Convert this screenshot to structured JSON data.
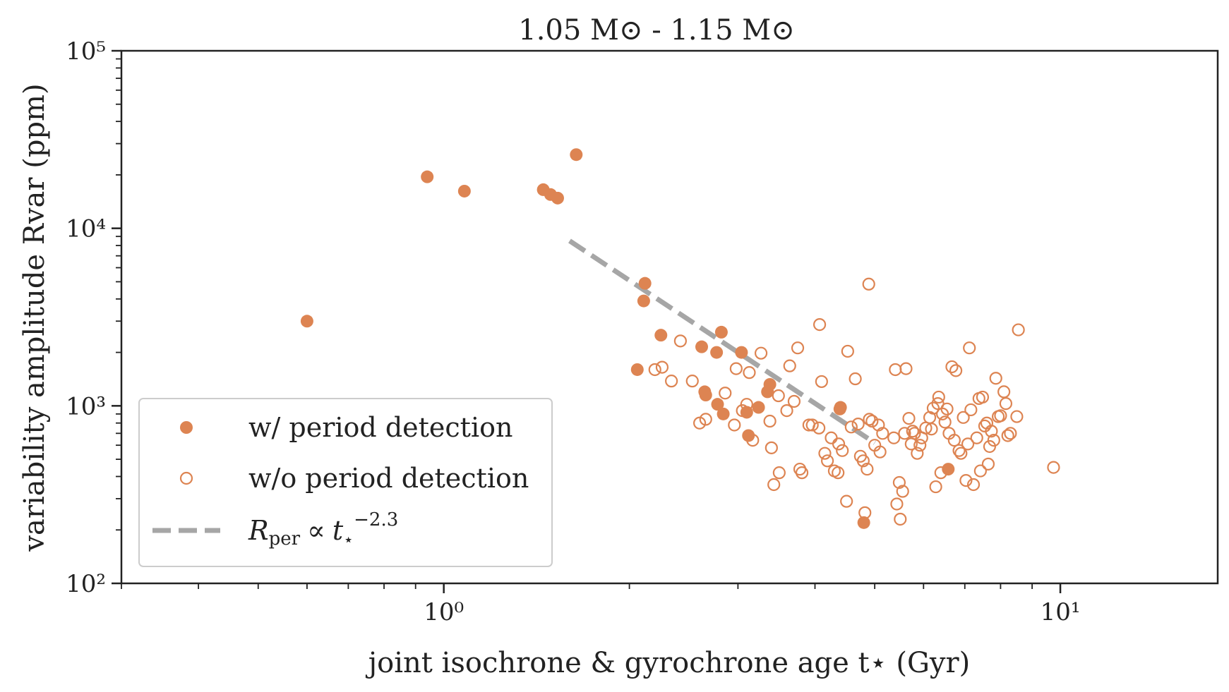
{
  "chart_data": {
    "type": "scatter",
    "title": "1.05 M⊙ - 1.15 M⊙",
    "xlabel": "joint isochrone & gyrochrone age t⋆ (Gyr)",
    "ylabel": "variability amplitude Rvar (ppm)",
    "xscale": "log",
    "yscale": "log",
    "xlim": [
      0.3,
      18
    ],
    "ylim": [
      100,
      100000
    ],
    "x_ticks": [
      {
        "value": 1,
        "label": "10⁰"
      },
      {
        "value": 10,
        "label": "10¹"
      }
    ],
    "y_ticks": [
      {
        "value": 100,
        "label": "10²"
      },
      {
        "value": 1000,
        "label": "10³"
      },
      {
        "value": 10000,
        "label": "10⁴"
      },
      {
        "value": 100000,
        "label": "10⁵"
      }
    ],
    "grid": false,
    "legend_position": "bottom-left",
    "colors": {
      "points": "#dd8452",
      "fit": "#a6a6a6",
      "axes": "#222222"
    },
    "series": [
      {
        "name": "w/ period detection",
        "marker": "filled-circle",
        "points": [
          [
            0.6,
            3000
          ],
          [
            0.94,
            19500
          ],
          [
            1.08,
            16200
          ],
          [
            1.45,
            16500
          ],
          [
            1.49,
            15500
          ],
          [
            1.53,
            14800
          ],
          [
            1.64,
            26000
          ],
          [
            2.12,
            4900
          ],
          [
            2.11,
            3900
          ],
          [
            2.06,
            1600
          ],
          [
            2.25,
            2500
          ],
          [
            2.62,
            2150
          ],
          [
            2.65,
            1200
          ],
          [
            2.66,
            1150
          ],
          [
            2.77,
            2000
          ],
          [
            2.82,
            2600
          ],
          [
            2.78,
            1020
          ],
          [
            2.84,
            900
          ],
          [
            3.04,
            2000
          ],
          [
            3.1,
            920
          ],
          [
            3.12,
            680
          ],
          [
            3.24,
            980
          ],
          [
            3.35,
            1200
          ],
          [
            3.38,
            1320
          ],
          [
            4.39,
            960
          ],
          [
            4.4,
            980
          ],
          [
            4.8,
            220
          ],
          [
            6.58,
            440
          ]
        ]
      },
      {
        "name": "w/o period detection",
        "marker": "open-circle",
        "points": [
          [
            2.2,
            1600
          ],
          [
            2.26,
            1650
          ],
          [
            2.34,
            1380
          ],
          [
            2.42,
            2320
          ],
          [
            2.53,
            1380
          ],
          [
            2.6,
            800
          ],
          [
            2.66,
            840
          ],
          [
            2.86,
            1180
          ],
          [
            2.96,
            780
          ],
          [
            2.98,
            1620
          ],
          [
            3.05,
            940
          ],
          [
            3.1,
            1020
          ],
          [
            3.13,
            1540
          ],
          [
            3.17,
            640
          ],
          [
            3.27,
            1980
          ],
          [
            3.38,
            820
          ],
          [
            3.4,
            580
          ],
          [
            3.43,
            360
          ],
          [
            3.5,
            420
          ],
          [
            3.49,
            1140
          ],
          [
            3.6,
            940
          ],
          [
            3.64,
            1680
          ],
          [
            3.7,
            1060
          ],
          [
            3.75,
            2120
          ],
          [
            3.78,
            440
          ],
          [
            3.81,
            420
          ],
          [
            3.91,
            780
          ],
          [
            3.96,
            780
          ],
          [
            4.06,
            750
          ],
          [
            4.1,
            1370
          ],
          [
            4.07,
            2870
          ],
          [
            4.15,
            540
          ],
          [
            4.19,
            490
          ],
          [
            4.25,
            660
          ],
          [
            4.3,
            430
          ],
          [
            4.36,
            420
          ],
          [
            4.37,
            610
          ],
          [
            4.43,
            560
          ],
          [
            4.5,
            290
          ],
          [
            4.52,
            2030
          ],
          [
            4.58,
            760
          ],
          [
            4.65,
            1420
          ],
          [
            4.7,
            790
          ],
          [
            4.74,
            520
          ],
          [
            4.79,
            490
          ],
          [
            4.82,
            250
          ],
          [
            4.86,
            440
          ],
          [
            4.89,
            4850
          ],
          [
            4.9,
            840
          ],
          [
            4.95,
            820
          ],
          [
            5.0,
            600
          ],
          [
            5.07,
            780
          ],
          [
            5.15,
            700
          ],
          [
            5.1,
            550
          ],
          [
            5.37,
            660
          ],
          [
            5.4,
            1600
          ],
          [
            5.43,
            280
          ],
          [
            5.48,
            370
          ],
          [
            5.5,
            230
          ],
          [
            5.55,
            330
          ],
          [
            5.59,
            700
          ],
          [
            5.62,
            1620
          ],
          [
            5.68,
            850
          ],
          [
            5.73,
            610
          ],
          [
            5.76,
            720
          ],
          [
            5.8,
            700
          ],
          [
            5.86,
            540
          ],
          [
            5.92,
            600
          ],
          [
            5.96,
            660
          ],
          [
            6.05,
            750
          ],
          [
            6.14,
            860
          ],
          [
            6.18,
            740
          ],
          [
            6.22,
            970
          ],
          [
            6.28,
            350
          ],
          [
            6.33,
            1030
          ],
          [
            6.35,
            1120
          ],
          [
            6.4,
            420
          ],
          [
            6.44,
            900
          ],
          [
            6.5,
            810
          ],
          [
            6.55,
            960
          ],
          [
            6.6,
            700
          ],
          [
            6.67,
            1660
          ],
          [
            6.73,
            640
          ],
          [
            6.77,
            1580
          ],
          [
            6.85,
            560
          ],
          [
            6.9,
            540
          ],
          [
            6.96,
            860
          ],
          [
            7.03,
            380
          ],
          [
            7.08,
            610
          ],
          [
            7.12,
            2120
          ],
          [
            7.16,
            950
          ],
          [
            7.23,
            360
          ],
          [
            7.32,
            660
          ],
          [
            7.38,
            1100
          ],
          [
            7.42,
            430
          ],
          [
            7.48,
            1120
          ],
          [
            7.54,
            770
          ],
          [
            7.6,
            800
          ],
          [
            7.64,
            470
          ],
          [
            7.68,
            590
          ],
          [
            7.73,
            720
          ],
          [
            7.8,
            640
          ],
          [
            7.86,
            1430
          ],
          [
            7.93,
            870
          ],
          [
            8.0,
            880
          ],
          [
            8.1,
            1200
          ],
          [
            8.16,
            1030
          ],
          [
            8.22,
            680
          ],
          [
            8.3,
            700
          ],
          [
            8.5,
            870
          ],
          [
            8.55,
            2680
          ],
          [
            9.75,
            450
          ]
        ]
      }
    ],
    "fit_line": {
      "name": "Rper ∝ t⋆^−2.3",
      "style": "dashed",
      "x_range": [
        1.6,
        5.0
      ],
      "exponent": -2.3,
      "y_at_x_start": 8500
    },
    "legend_labels": {
      "filled": "w/ period detection",
      "open": "w/o period detection",
      "fit_symbol": "R",
      "fit_subscript": "per",
      "fit_proportional": "∝",
      "fit_t": "t",
      "fit_star": "⋆",
      "fit_exponent": "−2.3"
    }
  }
}
